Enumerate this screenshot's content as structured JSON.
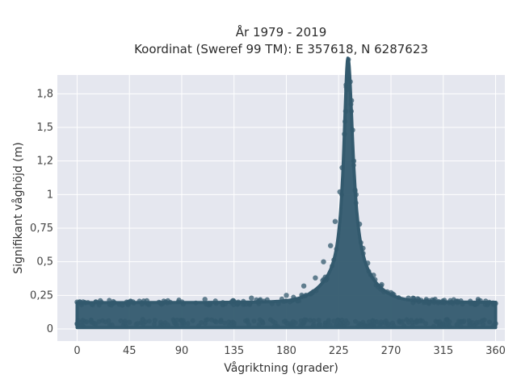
{
  "chart_data": {
    "type": "scatter",
    "title_lines": [
      "År 1979 - 2019",
      "Koordinat (Sweref 99 TM): E 357618, N 6287623"
    ],
    "xlabel": "Vågriktning (grader)",
    "ylabel": "Signifikant våghöjd (m)",
    "xlim": [
      -17,
      368
    ],
    "ylim": [
      -0.09,
      1.89
    ],
    "x_ticks": [
      0,
      45,
      90,
      135,
      180,
      225,
      270,
      315,
      360
    ],
    "x_tick_labels": [
      "0",
      "45",
      "90",
      "135",
      "180",
      "225",
      "270",
      "315",
      "360"
    ],
    "y_ticks": [
      0,
      0.25,
      0.5,
      0.75,
      1,
      1.25,
      1.5,
      1.75
    ],
    "y_tick_labels": [
      "0",
      "0,25",
      "0,5",
      "0,75",
      "1",
      "1,2",
      "1,5",
      "1,8"
    ],
    "grid": true,
    "marker_color": "#335a6e",
    "plot_background": "#e5e7ef",
    "series": [
      {
        "points": [
          [
            0,
            0.04
          ],
          [
            0,
            0.2
          ],
          [
            12,
            0.06
          ],
          [
            20,
            0.21
          ],
          [
            30,
            0.03
          ],
          [
            45,
            0.05
          ],
          [
            60,
            0.21
          ],
          [
            78,
            0.03
          ],
          [
            90,
            0.06
          ],
          [
            110,
            0.22
          ],
          [
            135,
            0.04
          ],
          [
            150,
            0.23
          ],
          [
            170,
            0.02
          ],
          [
            180,
            0.25
          ],
          [
            195,
            0.32
          ],
          [
            205,
            0.38
          ],
          [
            212,
            0.5
          ],
          [
            218,
            0.62
          ],
          [
            222,
            0.8
          ],
          [
            226,
            1.02
          ],
          [
            228,
            1.2
          ],
          [
            230,
            1.45
          ],
          [
            231,
            1.62
          ],
          [
            232,
            1.78
          ],
          [
            233,
            1.86
          ],
          [
            235,
            1.84
          ],
          [
            236,
            1.7
          ],
          [
            237,
            1.48
          ],
          [
            238,
            1.25
          ],
          [
            240,
            1.0
          ],
          [
            243,
            0.78
          ],
          [
            246,
            0.6
          ],
          [
            250,
            0.49
          ],
          [
            255,
            0.4
          ],
          [
            262,
            0.33
          ],
          [
            270,
            0.27
          ],
          [
            285,
            0.23
          ],
          [
            300,
            0.2
          ],
          [
            315,
            0.03
          ],
          [
            330,
            0.02
          ],
          [
            345,
            0.22
          ],
          [
            360,
            0.19
          ],
          [
            360,
            0.04
          ]
        ]
      }
    ]
  }
}
